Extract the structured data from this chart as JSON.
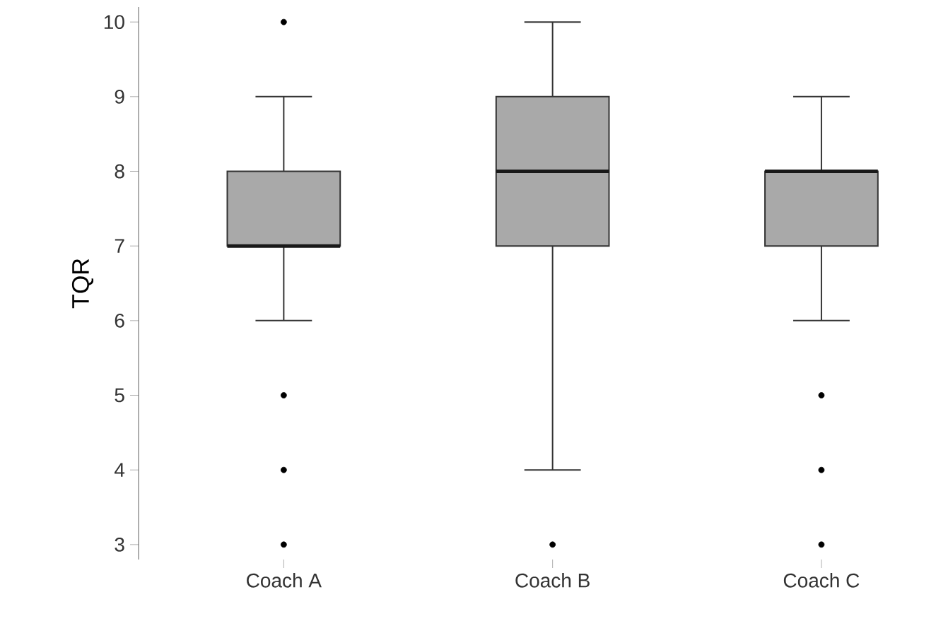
{
  "chart_data": {
    "type": "box",
    "ylabel": "TQR",
    "categories": [
      "Coach A",
      "Coach B",
      "Coach C"
    ],
    "color": "#a9a9a9",
    "boxes": [
      {
        "low": 6,
        "q1": 7,
        "median": 7,
        "q3": 8,
        "high": 9,
        "outliers": [
          10,
          5,
          4,
          3
        ]
      },
      {
        "low": 4,
        "q1": 7,
        "median": 8,
        "q3": 9,
        "high": 10,
        "outliers": [
          3
        ]
      },
      {
        "low": 6,
        "q1": 7,
        "median": 8,
        "q3": 8,
        "high": 9,
        "outliers": [
          5,
          4,
          3
        ]
      }
    ],
    "ylim": [
      2.8,
      10.2
    ],
    "yticks": [
      3,
      4,
      5,
      6,
      7,
      8,
      9,
      10
    ]
  }
}
